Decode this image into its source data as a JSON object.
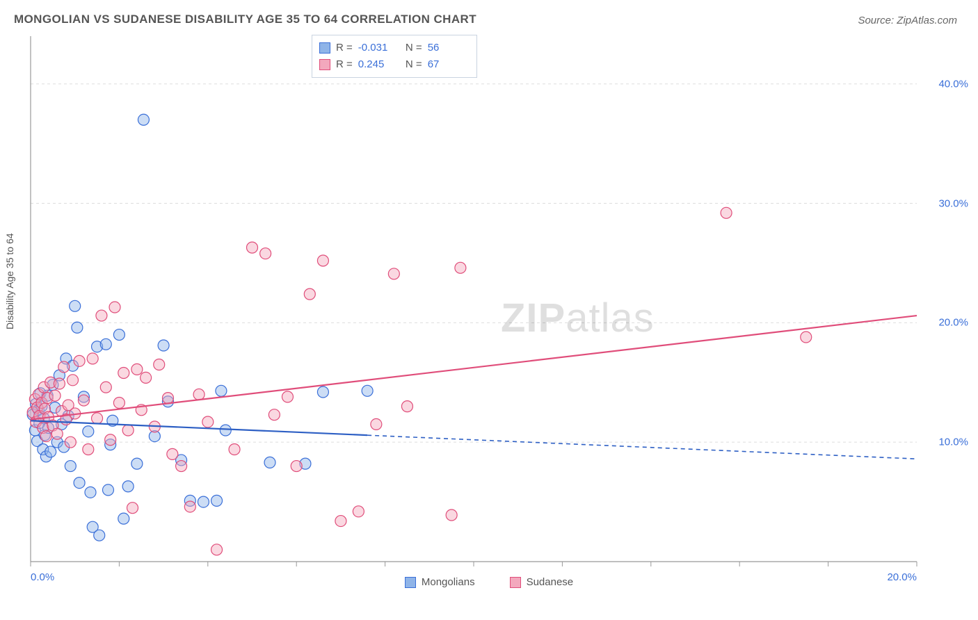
{
  "title": "MONGOLIAN VS SUDANESE DISABILITY AGE 35 TO 64 CORRELATION CHART",
  "source_label": "Source: ZipAtlas.com",
  "watermark_a": "ZIP",
  "watermark_b": "atlas",
  "y_axis_label": "Disability Age 35 to 64",
  "chart": {
    "type": "scatter+regression",
    "xlim": [
      0,
      20
    ],
    "ylim": [
      0,
      44
    ],
    "xticks": [
      0,
      2,
      4,
      6,
      8,
      10,
      12,
      14,
      16,
      18,
      20
    ],
    "xtick_labels": {
      "0": "0.0%",
      "20": "20.0%"
    },
    "yticks": [
      10,
      20,
      30,
      40
    ],
    "ytick_labels": {
      "10": "10.0%",
      "20": "20.0%",
      "30": "30.0%",
      "40": "40.0%"
    },
    "background": "#ffffff",
    "grid_color": "#dddddd",
    "series": [
      {
        "name": "Mongolians",
        "color_fill": "#8fb4e8",
        "color_stroke": "#3a6fd8",
        "fill_opacity": 0.45,
        "marker_radius": 8,
        "R": "-0.031",
        "N": "56",
        "trend": {
          "y0": 11.8,
          "y20": 8.6,
          "x_solid_end": 7.6,
          "color": "#2d5fc4",
          "width": 2.2
        },
        "points": [
          [
            0.05,
            12.3
          ],
          [
            0.1,
            11.0
          ],
          [
            0.12,
            13.2
          ],
          [
            0.15,
            10.1
          ],
          [
            0.18,
            12.7
          ],
          [
            0.2,
            11.6
          ],
          [
            0.22,
            14.1
          ],
          [
            0.25,
            13.0
          ],
          [
            0.28,
            9.4
          ],
          [
            0.3,
            12.0
          ],
          [
            0.32,
            10.6
          ],
          [
            0.35,
            8.8
          ],
          [
            0.38,
            13.9
          ],
          [
            0.4,
            11.2
          ],
          [
            0.45,
            9.2
          ],
          [
            0.5,
            14.8
          ],
          [
            0.55,
            12.9
          ],
          [
            0.6,
            10.0
          ],
          [
            0.65,
            15.6
          ],
          [
            0.7,
            11.5
          ],
          [
            0.75,
            9.6
          ],
          [
            0.8,
            17.0
          ],
          [
            0.85,
            12.2
          ],
          [
            0.9,
            8.0
          ],
          [
            0.95,
            16.4
          ],
          [
            1.0,
            21.4
          ],
          [
            1.05,
            19.6
          ],
          [
            1.1,
            6.6
          ],
          [
            1.2,
            13.8
          ],
          [
            1.3,
            10.9
          ],
          [
            1.35,
            5.8
          ],
          [
            1.4,
            2.9
          ],
          [
            1.5,
            18.0
          ],
          [
            1.55,
            2.2
          ],
          [
            1.7,
            18.2
          ],
          [
            1.75,
            6.0
          ],
          [
            1.8,
            9.8
          ],
          [
            1.85,
            11.8
          ],
          [
            2.0,
            19.0
          ],
          [
            2.1,
            3.6
          ],
          [
            2.2,
            6.3
          ],
          [
            2.4,
            8.2
          ],
          [
            2.55,
            37.0
          ],
          [
            2.8,
            10.5
          ],
          [
            3.0,
            18.1
          ],
          [
            3.1,
            13.4
          ],
          [
            3.4,
            8.5
          ],
          [
            3.6,
            5.1
          ],
          [
            3.9,
            5.0
          ],
          [
            4.2,
            5.1
          ],
          [
            4.3,
            14.3
          ],
          [
            4.4,
            11.0
          ],
          [
            5.4,
            8.3
          ],
          [
            6.2,
            8.2
          ],
          [
            6.6,
            14.2
          ],
          [
            7.6,
            14.3
          ]
        ]
      },
      {
        "name": "Sudanese",
        "color_fill": "#f3a8bd",
        "color_stroke": "#e04d7a",
        "fill_opacity": 0.45,
        "marker_radius": 8,
        "R": "0.245",
        "N": "67",
        "trend": {
          "y0": 11.9,
          "y20": 20.6,
          "x_solid_end": 20,
          "color": "#e04d7a",
          "width": 2.2
        },
        "points": [
          [
            0.05,
            12.5
          ],
          [
            0.1,
            13.6
          ],
          [
            0.12,
            11.7
          ],
          [
            0.15,
            12.9
          ],
          [
            0.18,
            14.0
          ],
          [
            0.2,
            12.2
          ],
          [
            0.25,
            13.3
          ],
          [
            0.28,
            11.2
          ],
          [
            0.3,
            14.6
          ],
          [
            0.32,
            12.8
          ],
          [
            0.35,
            10.5
          ],
          [
            0.38,
            13.7
          ],
          [
            0.4,
            12.1
          ],
          [
            0.45,
            15.0
          ],
          [
            0.5,
            11.4
          ],
          [
            0.55,
            13.9
          ],
          [
            0.6,
            10.7
          ],
          [
            0.65,
            14.9
          ],
          [
            0.7,
            12.6
          ],
          [
            0.75,
            16.3
          ],
          [
            0.8,
            11.9
          ],
          [
            0.85,
            13.1
          ],
          [
            0.9,
            10.0
          ],
          [
            0.95,
            15.2
          ],
          [
            1.0,
            12.4
          ],
          [
            1.1,
            16.8
          ],
          [
            1.2,
            13.5
          ],
          [
            1.3,
            9.4
          ],
          [
            1.4,
            17.0
          ],
          [
            1.5,
            12.0
          ],
          [
            1.6,
            20.6
          ],
          [
            1.7,
            14.6
          ],
          [
            1.8,
            10.2
          ],
          [
            1.9,
            21.3
          ],
          [
            2.0,
            13.3
          ],
          [
            2.1,
            15.8
          ],
          [
            2.2,
            11.0
          ],
          [
            2.3,
            4.5
          ],
          [
            2.4,
            16.1
          ],
          [
            2.5,
            12.7
          ],
          [
            2.6,
            15.4
          ],
          [
            2.8,
            11.3
          ],
          [
            2.9,
            16.5
          ],
          [
            3.1,
            13.7
          ],
          [
            3.2,
            9.0
          ],
          [
            3.4,
            8.0
          ],
          [
            3.6,
            4.6
          ],
          [
            3.8,
            14.0
          ],
          [
            4.0,
            11.7
          ],
          [
            4.2,
            1.0
          ],
          [
            4.6,
            9.4
          ],
          [
            5.0,
            26.3
          ],
          [
            5.3,
            25.8
          ],
          [
            5.5,
            12.3
          ],
          [
            5.8,
            13.8
          ],
          [
            6.0,
            8.0
          ],
          [
            6.3,
            22.4
          ],
          [
            6.6,
            25.2
          ],
          [
            7.0,
            3.4
          ],
          [
            7.4,
            4.2
          ],
          [
            7.8,
            11.5
          ],
          [
            8.2,
            24.1
          ],
          [
            8.5,
            13.0
          ],
          [
            9.5,
            3.9
          ],
          [
            9.7,
            24.6
          ],
          [
            15.7,
            29.2
          ],
          [
            17.5,
            18.8
          ]
        ]
      }
    ]
  },
  "legend_series": [
    {
      "label": "Mongolians",
      "fill": "#8fb4e8",
      "stroke": "#3a6fd8"
    },
    {
      "label": "Sudanese",
      "fill": "#f3a8bd",
      "stroke": "#e04d7a"
    }
  ]
}
